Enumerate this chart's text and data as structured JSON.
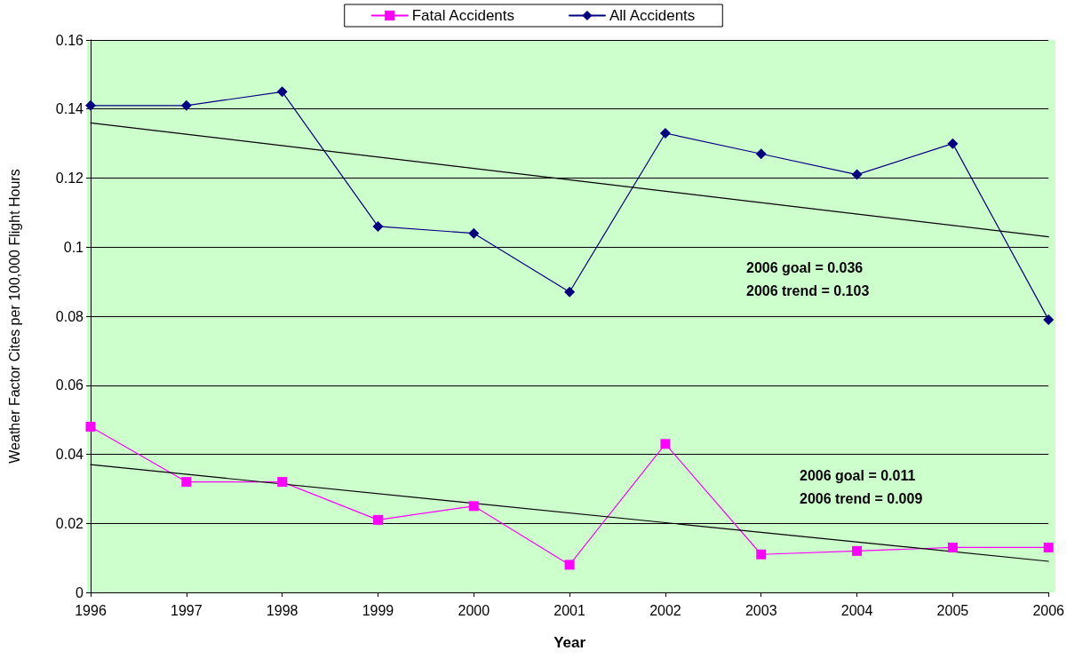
{
  "chart_data": {
    "type": "line",
    "xlabel": "Year",
    "ylabel": "Weather Factor Cites per 100,000 Flight Hours",
    "categories": [
      "1996",
      "1997",
      "1998",
      "1999",
      "2000",
      "2001",
      "2002",
      "2003",
      "2004",
      "2005",
      "2006"
    ],
    "series": [
      {
        "name": "Fatal Accidents",
        "color": "#ff00ff",
        "marker": "square",
        "values": [
          0.048,
          0.032,
          0.032,
          0.021,
          0.025,
          0.008,
          0.043,
          0.011,
          0.012,
          0.013,
          0.013
        ]
      },
      {
        "name": "All Accidents",
        "color": "#000080",
        "marker": "diamond",
        "values": [
          0.141,
          0.141,
          0.145,
          0.106,
          0.104,
          0.087,
          0.133,
          0.127,
          0.121,
          0.13,
          0.079
        ]
      },
      {
        "type": "line",
        "color": "#000000",
        "marker": "none",
        "values": [
          0.136,
          null,
          null,
          null,
          null,
          null,
          null,
          null,
          null,
          null,
          0.103
        ]
      },
      {
        "type": "line",
        "color": "#000000",
        "marker": "none",
        "values": [
          0.037,
          null,
          null,
          null,
          null,
          null,
          null,
          null,
          null,
          null,
          0.009
        ]
      }
    ],
    "ylim": [
      0,
      0.16
    ],
    "yticks": [
      0,
      0.02,
      0.04,
      0.06,
      0.08,
      0.1,
      0.12,
      0.14,
      0.16
    ],
    "grid": "y",
    "legend": "top",
    "annotations": [
      "2006 goal = 0.036\n2006 trend = 0.103",
      "2006 goal = 0.011\n2006 trend = 0.009"
    ]
  }
}
